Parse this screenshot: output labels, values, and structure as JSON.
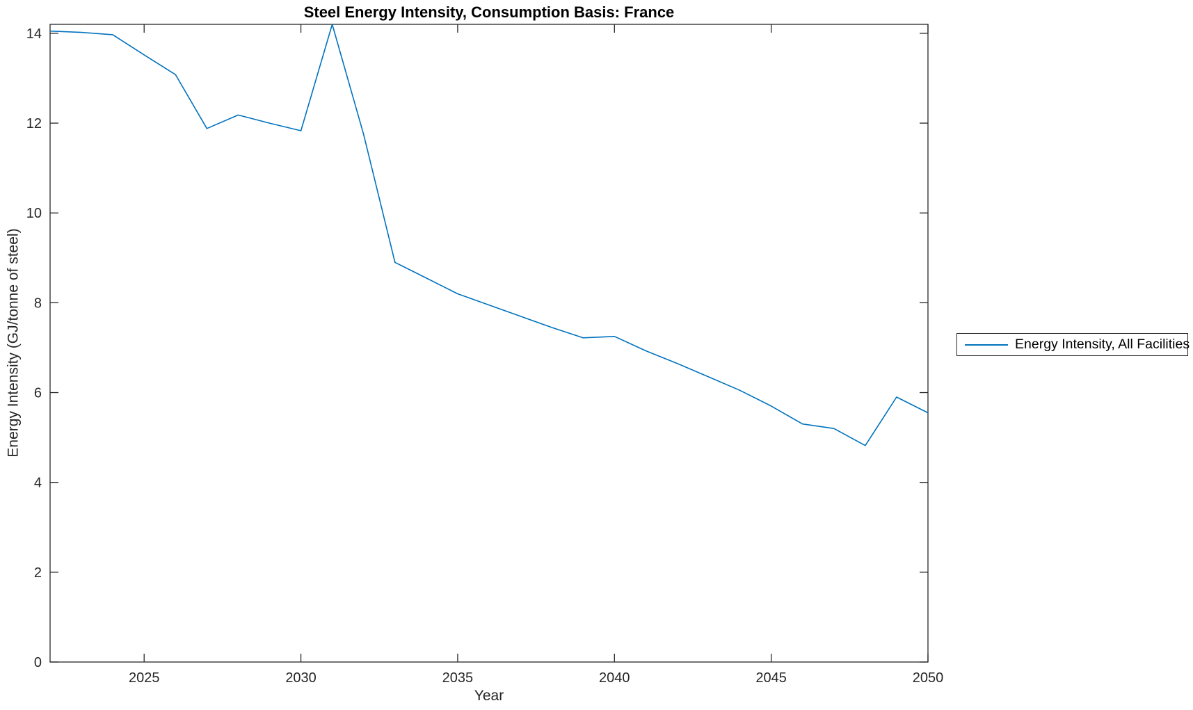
{
  "figure": {
    "background": "#ffffff"
  },
  "colors": {
    "axis": "#262626",
    "tick_text": "#262626",
    "title_text": "#000000",
    "line": "#0072BD"
  },
  "legend": {
    "position": "right-outside"
  },
  "chart_data": {
    "type": "line",
    "title": "Steel Energy Intensity, Consumption Basis: France",
    "xlabel": "Year",
    "ylabel": "Energy Intensity (GJ/tonne of steel)",
    "xlim": [
      2022,
      2050
    ],
    "ylim": [
      0,
      14.2
    ],
    "x_ticks": [
      2025,
      2030,
      2035,
      2040,
      2045,
      2050
    ],
    "y_ticks": [
      0,
      2,
      4,
      6,
      8,
      10,
      12,
      14
    ],
    "grid": false,
    "legend_position": "right-outside",
    "series": [
      {
        "name": "Energy Intensity, All Facilities",
        "color": "#0072BD",
        "x": [
          2022,
          2023,
          2024,
          2025,
          2026,
          2027,
          2028,
          2029,
          2030,
          2031,
          2032,
          2033,
          2034,
          2035,
          2036,
          2037,
          2038,
          2039,
          2040,
          2041,
          2042,
          2043,
          2044,
          2045,
          2046,
          2047,
          2048,
          2049,
          2050
        ],
        "values": [
          14.05,
          14.02,
          13.97,
          13.52,
          13.08,
          11.88,
          12.18,
          12.0,
          11.83,
          14.2,
          11.75,
          8.9,
          8.55,
          8.2,
          7.95,
          7.7,
          7.45,
          7.22,
          7.25,
          6.93,
          6.65,
          6.35,
          6.05,
          5.7,
          5.3,
          5.2,
          4.82,
          5.9,
          5.55
        ]
      }
    ]
  }
}
